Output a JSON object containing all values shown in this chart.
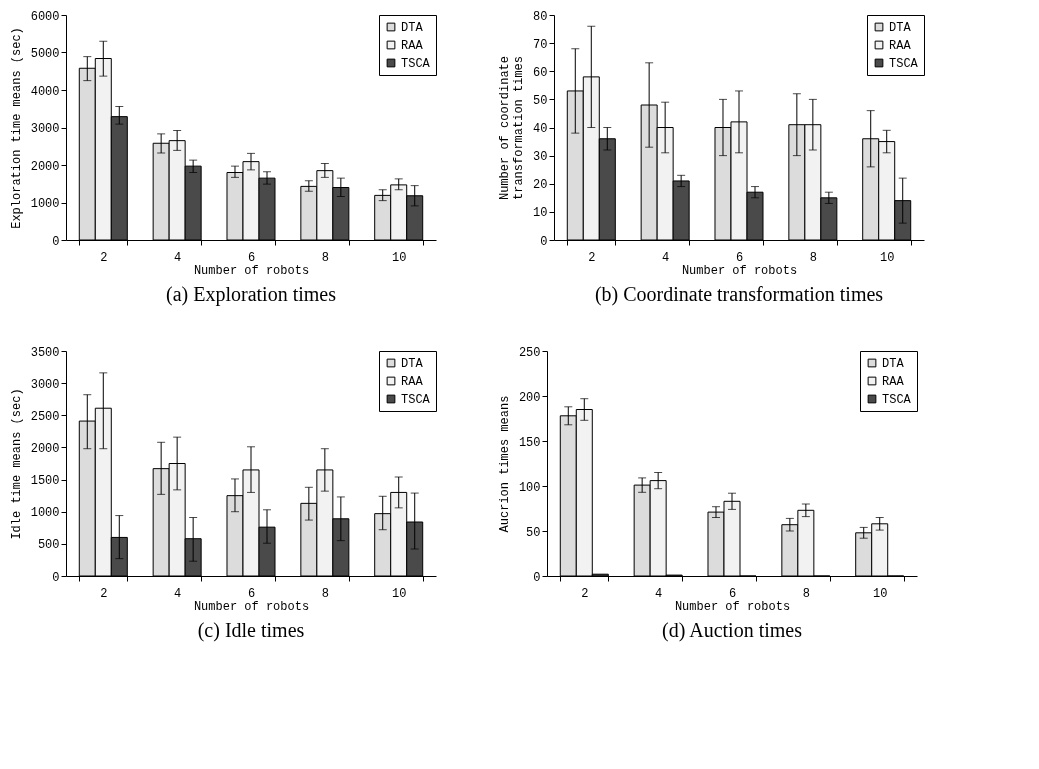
{
  "chart_data": [
    {
      "type": "bar",
      "title": "(a) Exploration times",
      "xlabel": "Number of robots",
      "ylabel": "Exploration time means (sec)",
      "categories": [
        "2",
        "4",
        "6",
        "8",
        "10"
      ],
      "ylim": [
        0,
        6000
      ],
      "yticks": [
        0,
        1000,
        2000,
        3000,
        4000,
        5000,
        6000
      ],
      "legend": "top right",
      "series": [
        {
          "name": "DTA",
          "color": "#dcdcdc",
          "values": [
            4580,
            2580,
            1800,
            1430,
            1190
          ],
          "errors": [
            [
              4250,
              4890
            ],
            [
              2320,
              2830
            ],
            [
              1670,
              1970
            ],
            [
              1300,
              1580
            ],
            [
              1050,
              1340
            ]
          ]
        },
        {
          "name": "RAA",
          "color": "#f2f2f2",
          "values": [
            4840,
            2650,
            2090,
            1850,
            1470
          ],
          "errors": [
            [
              4370,
              5300
            ],
            [
              2390,
              2920
            ],
            [
              1870,
              2310
            ],
            [
              1670,
              2040
            ],
            [
              1340,
              1630
            ]
          ]
        },
        {
          "name": "TSCA",
          "color": "#4a4a4a",
          "values": [
            3290,
            1970,
            1650,
            1400,
            1180
          ],
          "errors": [
            [
              3090,
              3560
            ],
            [
              1800,
              2130
            ],
            [
              1490,
              1820
            ],
            [
              1160,
              1650
            ],
            [
              910,
              1450
            ]
          ]
        }
      ]
    },
    {
      "type": "bar",
      "title": "(b) Coordinate transformation times",
      "xlabel": "Number of robots",
      "ylabel": "Number of coordinate\ntransformation times",
      "categories": [
        "2",
        "4",
        "6",
        "8",
        "10"
      ],
      "ylim": [
        0,
        80
      ],
      "yticks": [
        0,
        10,
        20,
        30,
        40,
        50,
        60,
        70,
        80
      ],
      "legend": "top right",
      "series": [
        {
          "name": "DTA",
          "color": "#dcdcdc",
          "values": [
            53,
            48,
            40,
            41,
            36
          ],
          "errors": [
            [
              38,
              68
            ],
            [
              33,
              63
            ],
            [
              30,
              50
            ],
            [
              30,
              52
            ],
            [
              26,
              46
            ]
          ]
        },
        {
          "name": "RAA",
          "color": "#f2f2f2",
          "values": [
            58,
            40,
            42,
            41,
            35
          ],
          "errors": [
            [
              40,
              76
            ],
            [
              31,
              49
            ],
            [
              31,
              53
            ],
            [
              32,
              50
            ],
            [
              31,
              39
            ]
          ]
        },
        {
          "name": "TSCA",
          "color": "#4a4a4a",
          "values": [
            36,
            21,
            17,
            15,
            14
          ],
          "errors": [
            [
              32,
              40
            ],
            [
              19,
              23
            ],
            [
              15,
              19
            ],
            [
              13,
              17
            ],
            [
              6,
              22
            ]
          ]
        }
      ]
    },
    {
      "type": "bar",
      "title": "(c) Idle times",
      "xlabel": "Number of robots",
      "ylabel": "Idle time means (sec)",
      "categories": [
        "2",
        "4",
        "6",
        "8",
        "10"
      ],
      "ylim": [
        0,
        3500
      ],
      "yticks": [
        0,
        500,
        1000,
        1500,
        2000,
        2500,
        3000,
        3500
      ],
      "legend": "top right",
      "series": [
        {
          "name": "DTA",
          "color": "#dcdcdc",
          "values": [
            2410,
            1670,
            1250,
            1130,
            970
          ],
          "errors": [
            [
              1980,
              2820
            ],
            [
              1270,
              2080
            ],
            [
              1000,
              1510
            ],
            [
              870,
              1380
            ],
            [
              720,
              1240
            ]
          ]
        },
        {
          "name": "RAA",
          "color": "#f2f2f2",
          "values": [
            2610,
            1750,
            1650,
            1650,
            1300
          ],
          "errors": [
            [
              1980,
              3160
            ],
            [
              1340,
              2160
            ],
            [
              1300,
              2010
            ],
            [
              1320,
              1980
            ],
            [
              1060,
              1540
            ]
          ]
        },
        {
          "name": "TSCA",
          "color": "#4a4a4a",
          "values": [
            600,
            580,
            760,
            890,
            840
          ],
          "errors": [
            [
              270,
              940
            ],
            [
              230,
              910
            ],
            [
              510,
              1030
            ],
            [
              550,
              1230
            ],
            [
              420,
              1290
            ]
          ]
        }
      ]
    },
    {
      "type": "bar",
      "title": "(d) Auction times",
      "xlabel": "Number of robots",
      "ylabel": "Aucrion times means",
      "categories": [
        "2",
        "4",
        "6",
        "8",
        "10"
      ],
      "ylim": [
        0,
        250
      ],
      "yticks": [
        0,
        50,
        100,
        150,
        200,
        250
      ],
      "legend": "top right",
      "series": [
        {
          "name": "DTA",
          "color": "#dcdcdc",
          "values": [
            178,
            101,
            71,
            57,
            48
          ],
          "errors": [
            [
              168,
              188
            ],
            [
              93,
              109
            ],
            [
              65,
              77
            ],
            [
              50,
              64
            ],
            [
              42,
              54
            ]
          ]
        },
        {
          "name": "RAA",
          "color": "#f2f2f2",
          "values": [
            185,
            106,
            83,
            73,
            58
          ],
          "errors": [
            [
              173,
              197
            ],
            [
              97,
              115
            ],
            [
              74,
              92
            ],
            [
              66,
              80
            ],
            [
              51,
              65
            ]
          ]
        },
        {
          "name": "TSCA",
          "color": "#4a4a4a",
          "values": [
            2,
            1,
            0,
            0,
            0
          ]
        }
      ]
    }
  ]
}
